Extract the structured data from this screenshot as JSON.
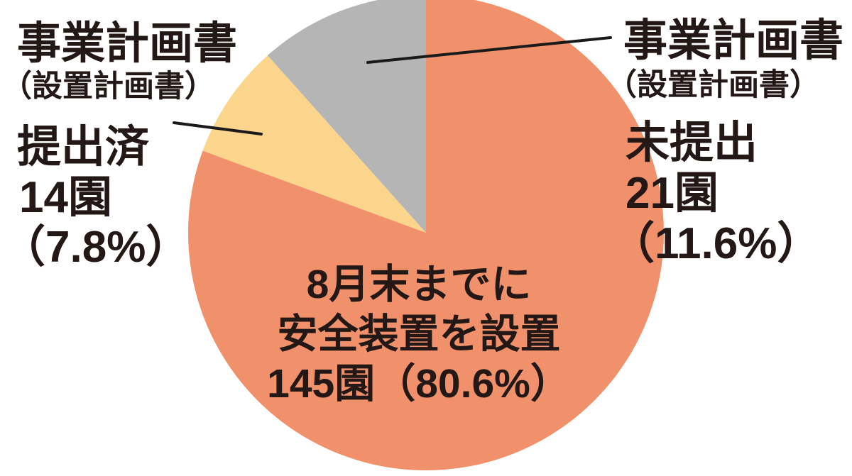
{
  "chart_data": {
    "type": "pie",
    "title": "",
    "direction": "clockwise",
    "start_angle_deg": 0,
    "labels_style": "callout",
    "slices": [
      {
        "id": "installed",
        "label": "8月末までに安全装置を設置",
        "count_label": "145園",
        "percent": 80.6,
        "percent_label": "（80.6%）",
        "color": "#F0916B"
      },
      {
        "id": "plan-submitted",
        "label": "事業計画書（設置計画書）提出済",
        "count_label": "14園",
        "percent": 7.8,
        "percent_label": "（7.8%）",
        "color": "#FBD58B"
      },
      {
        "id": "plan-not-submitted",
        "label": "事業計画書（設置計画書）未提出",
        "count_label": "21園",
        "percent": 11.6,
        "percent_label": "（11.6%）",
        "color": "#B5B5B5"
      }
    ]
  },
  "labels": {
    "left": {
      "line1": "事業計画書",
      "line2": "（設置計画書）",
      "line3": "提出済",
      "line4": "14園",
      "line5": "（7.8%）"
    },
    "right": {
      "line1": "事業計画書",
      "line2": "（設置計画書）",
      "line3": "未提出",
      "line4": "21園",
      "line5": "（11.6%）"
    },
    "center": {
      "line1": "8月末までに",
      "line2": "安全装置を設置",
      "line3": "145園（80.6%）"
    }
  },
  "colors": {
    "slice_installed": "#F0916B",
    "slice_submitted": "#FBD58B",
    "slice_not_submitted": "#B5B5B5",
    "text": "#231815",
    "leader_line": "#1A1A1A",
    "background": "#FFFFFF"
  }
}
